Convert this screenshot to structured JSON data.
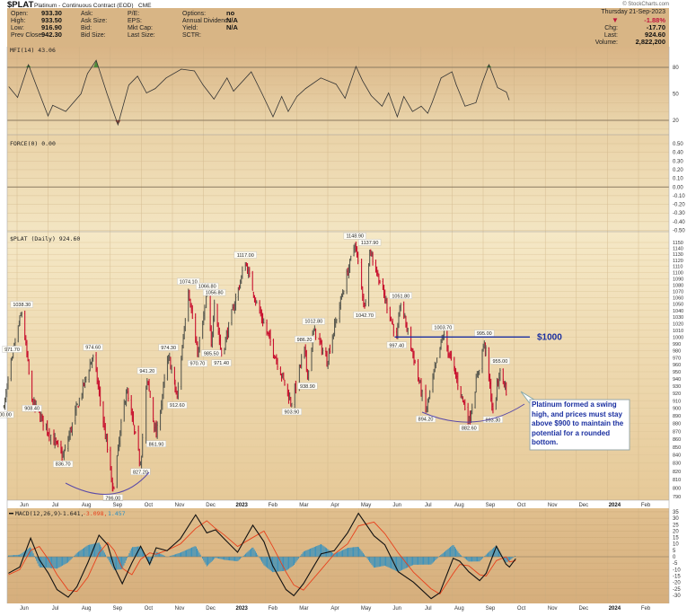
{
  "header": {
    "symbol": "$PLAT",
    "name": "Platinum - Continuous Contract (EOD)",
    "exchange": "CME",
    "copyright": "© StockCharts.com",
    "date": "Thursday  21-Sep-2023",
    "change_pct": "-1.88%",
    "chg_label": "Chg:",
    "chg_value": "-17.70",
    "last_label": "Last:",
    "last_value": "924.60",
    "volume_label": "Volume:",
    "volume_value": "2,822,200",
    "fields": [
      {
        "label": "Open:",
        "value": "933.30"
      },
      {
        "label": "High:",
        "value": "933.50"
      },
      {
        "label": "Low:",
        "value": "916.90"
      },
      {
        "label": "Prev Close:",
        "value": "942.30"
      }
    ],
    "fields2": [
      "Ask:",
      "Ask Size:",
      "Bid:",
      "Bid Size:"
    ],
    "fields3": [
      "P/E:",
      "EPS:",
      "Mkt Cap:",
      "Last Size:"
    ],
    "fields4": [
      {
        "label": "Options:",
        "value": "no"
      },
      {
        "label": "Annual Dividend:",
        "value": "N/A"
      },
      {
        "label": "Yield:",
        "value": "N/A"
      },
      {
        "label": "SCTR:",
        "value": ""
      }
    ],
    "down_color": "#c0143c"
  },
  "chart_data": [
    {
      "type": "line",
      "title": "MFI(14) 43.06",
      "ylim": [
        0,
        100
      ],
      "yticks": [
        80,
        50,
        20
      ],
      "reference_lines": [
        80,
        20
      ],
      "x_unit": "months since 2022-06-01",
      "x": [
        -0.35,
        -0.07,
        0.28,
        0.56,
        0.91,
        1.06,
        1.48,
        1.97,
        2.18,
        2.46,
        2.81,
        3.16,
        3.51,
        3.79,
        4.08,
        4.36,
        4.71,
        5.2,
        5.62,
        5.9,
        6.25,
        6.67,
        6.88,
        7.45,
        7.8,
        8.15,
        8.43,
        8.64,
        8.92,
        9.2,
        9.69,
        10.18,
        10.47,
        10.82,
        11.03,
        11.31,
        11.66,
        11.87,
        12.15,
        12.36,
        12.64,
        12.92,
        13.13,
        13.27,
        13.56,
        13.91,
        14.05,
        14.33,
        14.68,
        14.89,
        15.1,
        15.38,
        15.66,
        15.75
      ],
      "values": [
        58,
        46,
        83,
        57,
        25,
        37,
        30,
        50,
        73,
        88,
        50,
        15,
        60,
        70,
        51,
        56,
        68,
        78,
        76,
        60,
        44,
        68,
        53,
        75,
        50,
        24,
        47,
        30,
        47,
        56,
        68,
        61,
        45,
        81,
        65,
        48,
        36,
        51,
        24,
        47,
        30,
        36,
        28,
        40,
        68,
        75,
        60,
        36,
        40,
        63,
        83,
        57,
        52,
        43.06
      ]
    },
    {
      "type": "line",
      "title": "FORCE(0) 0.00",
      "ylim": [
        -0.5,
        0.5
      ],
      "yticks": [
        "0.50",
        "0.40",
        "0.30",
        "0.20",
        "0.10",
        "0.00",
        "-0.10",
        "-0.20",
        "-0.30",
        "-0.40",
        "-0.50"
      ],
      "values": [
        0
      ]
    },
    {
      "type": "ohlc",
      "title": "$PLAT (Daily) 924.60",
      "scale": "log",
      "ylim": [
        790,
        1150
      ],
      "yticks": [
        1150,
        1140,
        1130,
        1120,
        1110,
        1100,
        1090,
        1080,
        1070,
        1060,
        1050,
        1040,
        1030,
        1020,
        1010,
        1000,
        990,
        980,
        970,
        960,
        950,
        940,
        930,
        920,
        910,
        900,
        890,
        880,
        870,
        860,
        850,
        840,
        830,
        820,
        810,
        800,
        790
      ],
      "pivots": [
        {
          "date": "2022-05-16",
          "price": 900.0,
          "label": "900.00",
          "pos": "below"
        },
        {
          "date": "2022-05-24",
          "price": 971.7,
          "label": "971.70",
          "pos": "above"
        },
        {
          "date": "2022-06-03",
          "price": 1038.3,
          "label": "1038.30",
          "pos": "above"
        },
        {
          "date": "2022-06-13",
          "price": 908.4,
          "label": "908.40",
          "pos": "below"
        },
        {
          "date": "2022-07-13",
          "price": 836.7,
          "label": "836.70",
          "pos": "below"
        },
        {
          "date": "2022-08-12",
          "price": 974.6,
          "label": "974.60",
          "pos": "above"
        },
        {
          "date": "2022-09-01",
          "price": 796.0,
          "label": "796.00",
          "pos": "below"
        },
        {
          "date": "2022-09-14",
          "price": 925.0
        },
        {
          "date": "2022-09-28",
          "price": 827.2,
          "label": "827.20",
          "pos": "below"
        },
        {
          "date": "2022-10-04",
          "price": 941.2,
          "label": "941.20",
          "pos": "above"
        },
        {
          "date": "2022-10-13",
          "price": 861.9,
          "label": "861.90",
          "pos": "below"
        },
        {
          "date": "2022-10-25",
          "price": 974.3,
          "label": "974.30",
          "pos": "above"
        },
        {
          "date": "2022-11-03",
          "price": 912.6,
          "label": "912.60",
          "pos": "below"
        },
        {
          "date": "2022-11-14",
          "price": 1074.1,
          "label": "1074.10",
          "pos": "above"
        },
        {
          "date": "2022-11-23",
          "price": 970.7,
          "label": "970.70",
          "pos": "below"
        },
        {
          "date": "2022-12-02",
          "price": 1066.8,
          "label": "1066.80",
          "pos": "above"
        },
        {
          "date": "2022-12-06",
          "price": 985.5,
          "label": "985.50",
          "pos": "below"
        },
        {
          "date": "2022-12-09",
          "price": 1056.8,
          "label": "1056.80",
          "pos": "above"
        },
        {
          "date": "2022-12-16",
          "price": 971.4,
          "label": "971.40",
          "pos": "below"
        },
        {
          "date": "2023-01-09",
          "price": 1117.0,
          "label": "1117.00",
          "pos": "above"
        },
        {
          "date": "2023-01-20",
          "price": 1050.0
        },
        {
          "date": "2023-02-24",
          "price": 903.9,
          "label": "903.90",
          "pos": "below"
        },
        {
          "date": "2023-03-06",
          "price": 986.2,
          "label": "986.20",
          "pos": "above"
        },
        {
          "date": "2023-03-09",
          "price": 938.9,
          "label": "938.90",
          "pos": "below"
        },
        {
          "date": "2023-03-15",
          "price": 1012.8,
          "label": "1012.80",
          "pos": "above"
        },
        {
          "date": "2023-03-28",
          "price": 965.0
        },
        {
          "date": "2023-04-25",
          "price": 1148.9,
          "label": "1148.90",
          "pos": "above"
        },
        {
          "date": "2023-05-04",
          "price": 1042.7,
          "label": "1042.70",
          "pos": "below"
        },
        {
          "date": "2023-05-09",
          "price": 1137.9,
          "label": "1137.90",
          "pos": "above"
        },
        {
          "date": "2023-06-05",
          "price": 997.4,
          "label": "997.40",
          "pos": "below"
        },
        {
          "date": "2023-06-09",
          "price": 1051.8,
          "label": "1051.80",
          "pos": "above"
        },
        {
          "date": "2023-07-03",
          "price": 894.2,
          "label": "894.20",
          "pos": "below"
        },
        {
          "date": "2023-07-20",
          "price": 1003.7,
          "label": "1003.70",
          "pos": "above"
        },
        {
          "date": "2023-08-15",
          "price": 882.6,
          "label": "882.60",
          "pos": "below"
        },
        {
          "date": "2023-08-30",
          "price": 995.0,
          "label": "995.00",
          "pos": "above"
        },
        {
          "date": "2023-09-08",
          "price": 893.3,
          "label": "893.30",
          "pos": "below"
        },
        {
          "date": "2023-09-15",
          "price": 955.0,
          "label": "955.00",
          "pos": "above"
        },
        {
          "date": "2023-09-21",
          "price": 924.6
        }
      ],
      "resistance": {
        "price": 1000,
        "label": "$1000",
        "color": "#1a2fa0"
      },
      "annotation": "Platinum formed a swing high, and prices must stay above $900 to maintain the potential for a rounded bottom.",
      "up_color": "#5a5a50",
      "down_color": "#c8102e"
    },
    {
      "type": "line",
      "title": "MACD(12,26,9)",
      "legend": {
        "macd": "-1.641,",
        "signal": "-3.098,",
        "hist": "1.457"
      },
      "ylim": [
        -35,
        37
      ],
      "yticks": [
        35,
        30,
        25,
        20,
        15,
        10,
        5,
        0,
        -5,
        -10,
        -15,
        -20,
        -25,
        -30
      ],
      "x_unit": "months since 2022-06-01",
      "x": [
        -0.36,
        0,
        0.35,
        0.63,
        0.92,
        1.2,
        1.56,
        1.84,
        2.19,
        2.55,
        2.83,
        3.04,
        3.3,
        3.61,
        3.89,
        4.18,
        4.39,
        4.74,
        5.17,
        5.66,
        6.02,
        6.3,
        6.58,
        7.01,
        7.5,
        7.86,
        8.14,
        8.57,
        8.82,
        9.13,
        9.7,
        10.12,
        10.55,
        10.9,
        11.4,
        11.75,
        12.18,
        12.67,
        13.24,
        13.52,
        13.95,
        14.16,
        14.45,
        14.8,
        15.01,
        15.34,
        15.65,
        15.76,
        15.96
      ],
      "macd": [
        -12.8,
        -8,
        14.5,
        -2.3,
        -12.8,
        -25.6,
        -31.5,
        -23.3,
        -4.7,
        16.8,
        9.3,
        -8,
        -21,
        -4.7,
        8.2,
        -5.8,
        7,
        4.7,
        14,
        32.6,
        18.6,
        21,
        14,
        3.5,
        24.5,
        11.7,
        -7,
        -25.6,
        -30.3,
        -21,
        2.3,
        4.7,
        18.6,
        33.8,
        16.3,
        9.3,
        -11.7,
        -19.8,
        -32.6,
        -28,
        -1.2,
        -3.5,
        -11.7,
        -18.6,
        -12.8,
        8.2,
        -5.8,
        -8,
        -1.641
      ],
      "signal": [
        -14,
        -10,
        5,
        8,
        -2,
        -14,
        -26,
        -27,
        -16,
        3,
        11,
        5,
        -9,
        -14,
        -2,
        3,
        2,
        5,
        10,
        22,
        28,
        22,
        17,
        8,
        15,
        20,
        8,
        -12,
        -22,
        -26,
        -10,
        2,
        10,
        24,
        27,
        18,
        3,
        -12,
        -25,
        -29,
        -13,
        -6,
        -7,
        -14,
        -15,
        -3,
        0,
        -4,
        -3.098
      ],
      "macd_color": "#111111",
      "signal_color": "#e8401c",
      "hist_color": "#2e8fc0"
    }
  ],
  "time_axis": {
    "labels": [
      "Jun",
      "Jul",
      "Aug",
      "Sep",
      "Oct",
      "Nov",
      "Dec",
      "2023",
      "Feb",
      "Mar",
      "Apr",
      "May",
      "Jun",
      "Jul",
      "Aug",
      "Sep",
      "Oct",
      "Nov",
      "Dec",
      "2024",
      "Feb"
    ]
  }
}
